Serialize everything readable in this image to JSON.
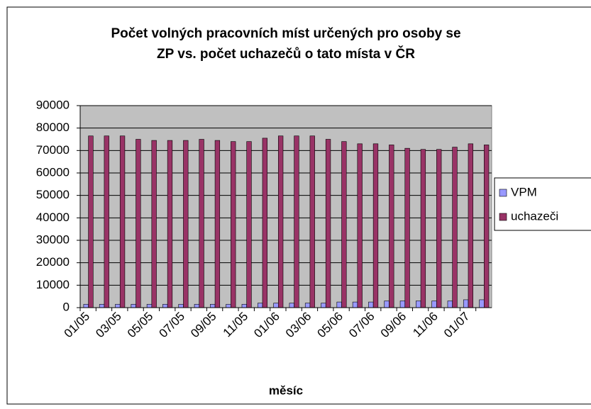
{
  "chart_data": {
    "type": "bar",
    "title": [
      "Počet volných pracovních míst určených pro osoby se",
      "ZP vs. počet uchazečů o tato místa v ČR"
    ],
    "x_label": "měsíc",
    "categories": [
      "01/05",
      null,
      "03/05",
      null,
      "05/05",
      null,
      "07/05",
      null,
      "09/05",
      null,
      "11/05",
      null,
      "01/06",
      null,
      "03/06",
      null,
      "05/06",
      null,
      "07/06",
      null,
      "09/06",
      null,
      "11/06",
      null,
      "01/07",
      null
    ],
    "series": [
      {
        "name": "VPM",
        "color": "#9999ff",
        "values": [
          1500,
          1500,
          1500,
          1500,
          1500,
          1500,
          1500,
          1500,
          1500,
          1500,
          1500,
          2000,
          2000,
          2000,
          2000,
          2000,
          2500,
          2500,
          2500,
          3000,
          3000,
          3000,
          3000,
          3000,
          3500,
          3500
        ]
      },
      {
        "name": "uchazeči",
        "color": "#993366",
        "values": [
          76500,
          76500,
          76500,
          75000,
          74500,
          74500,
          74500,
          75000,
          74500,
          74000,
          74000,
          75500,
          76500,
          76500,
          76500,
          75000,
          74000,
          73000,
          73000,
          72500,
          71000,
          70500,
          70500,
          71500,
          73000,
          72500
        ]
      }
    ],
    "ylim": [
      0,
      90000
    ],
    "yticks": [
      0,
      10000,
      20000,
      30000,
      40000,
      50000,
      60000,
      70000,
      80000,
      90000
    ],
    "grid": true,
    "legend": "right",
    "plot_background": "#c0c0c0"
  }
}
